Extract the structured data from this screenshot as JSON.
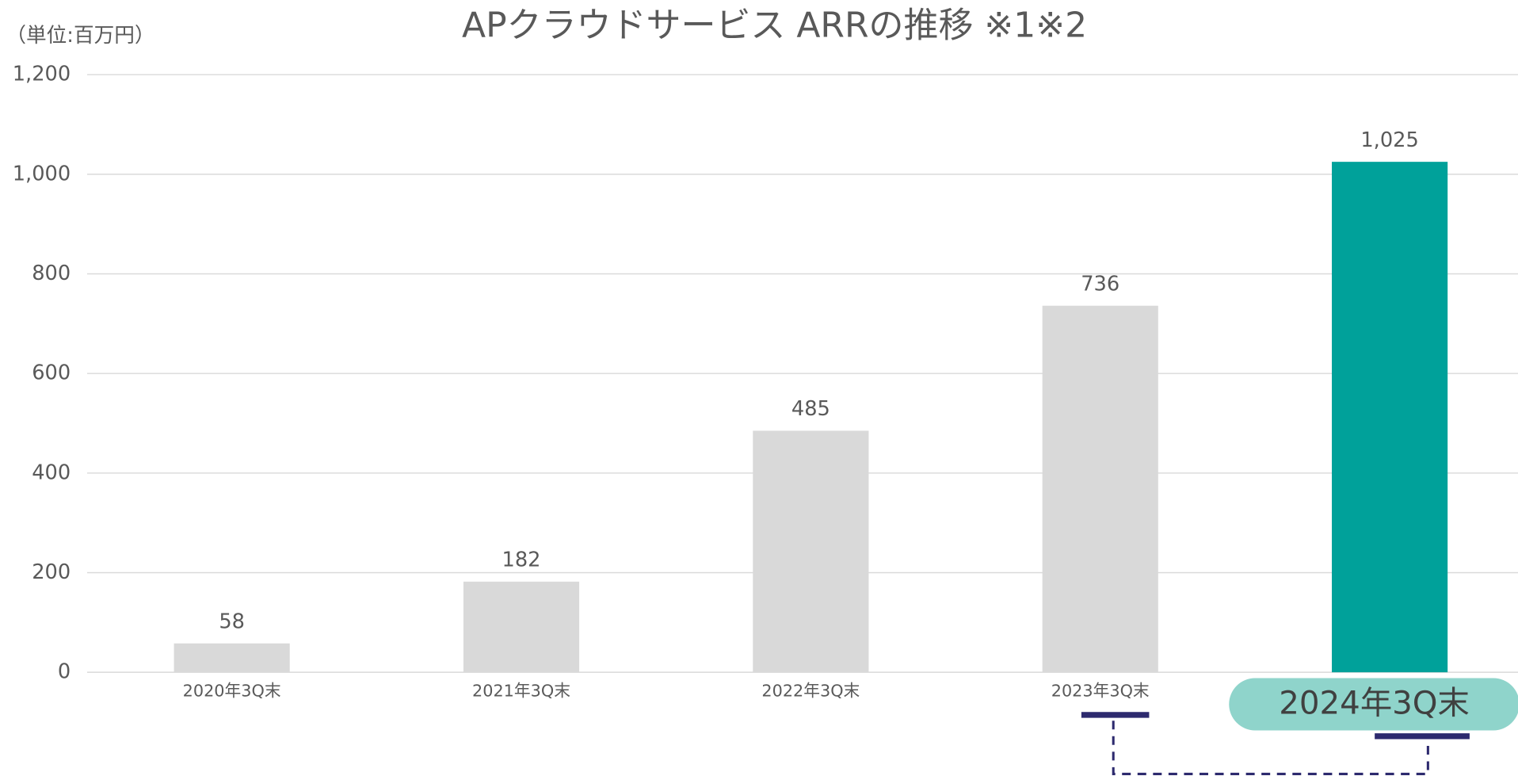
{
  "chart_data": {
    "type": "bar",
    "title": "APクラウドサービス ARRの推移 ※1※2",
    "unit_label": "（単位:百万円）",
    "categories": [
      "2020年3Q末",
      "2021年3Q末",
      "2022年3Q末",
      "2023年3Q末",
      "2024年3Q末"
    ],
    "values": [
      58,
      182,
      485,
      736,
      1025
    ],
    "value_labels": [
      "58",
      "182",
      "485",
      "736",
      "1,025"
    ],
    "colors": [
      "#d9d9d9",
      "#d9d9d9",
      "#d9d9d9",
      "#d9d9d9",
      "#00a19a"
    ],
    "ylim": [
      0,
      1200
    ],
    "yticks": [
      0,
      200,
      400,
      600,
      800,
      {
        "value": 1000,
        "label": "1,000"
      },
      {
        "value": 1200,
        "label": "1,200"
      }
    ],
    "grid": true
  }
}
